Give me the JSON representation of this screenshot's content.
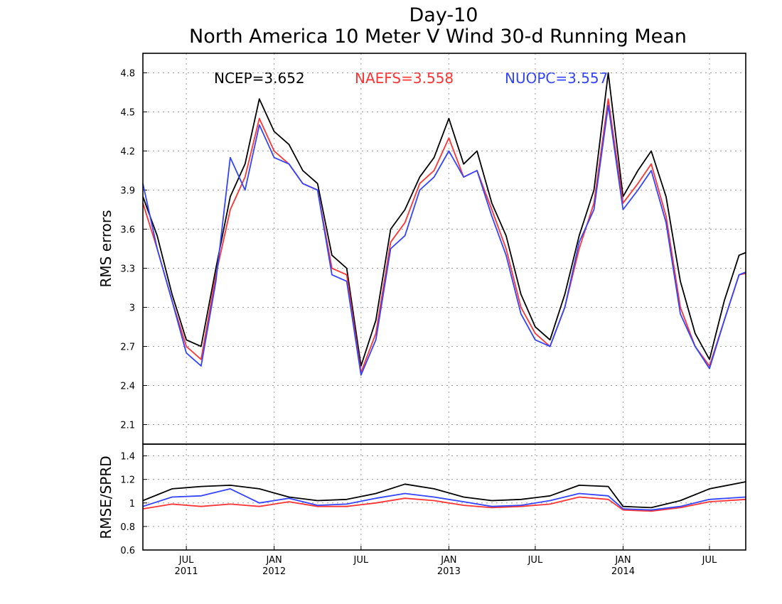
{
  "chart_data": [
    {
      "type": "line",
      "title": "Day-10",
      "subtitle": "North America 10 Meter V Wind 30-d Running Mean",
      "ylabel": "RMS errors",
      "ylim": [
        1.95,
        4.95
      ],
      "yticks": [
        "2.1",
        "2.4",
        "2.7",
        "3",
        "3.3",
        "3.6",
        "3.9",
        "4.2",
        "4.5",
        "4.8"
      ],
      "xlim": [
        "2011-04-01",
        "2014-09-15"
      ],
      "grid": true,
      "series": [
        {
          "name": "NCEP",
          "label": "NCEP=3.652",
          "color": "#000000",
          "x": [
            "2011-04-01",
            "2011-05-01",
            "2011-06-01",
            "2011-07-01",
            "2011-08-01",
            "2011-09-01",
            "2011-10-01",
            "2011-11-01",
            "2011-12-01",
            "2012-01-01",
            "2012-02-01",
            "2012-03-01",
            "2012-04-01",
            "2012-05-01",
            "2012-06-01",
            "2012-07-01",
            "2012-08-01",
            "2012-09-01",
            "2012-10-01",
            "2012-11-01",
            "2012-12-01",
            "2013-01-01",
            "2013-02-01",
            "2013-03-01",
            "2013-04-01",
            "2013-05-01",
            "2013-06-01",
            "2013-07-01",
            "2013-08-01",
            "2013-09-01",
            "2013-10-01",
            "2013-11-01",
            "2013-12-01",
            "2014-01-01",
            "2014-02-01",
            "2014-03-01",
            "2014-04-01",
            "2014-05-01",
            "2014-06-01",
            "2014-07-01",
            "2014-08-01",
            "2014-09-01",
            "2014-09-15"
          ],
          "y": [
            3.85,
            3.55,
            3.1,
            2.75,
            2.7,
            3.3,
            3.85,
            4.1,
            4.6,
            4.35,
            4.25,
            4.05,
            3.95,
            3.4,
            3.3,
            2.55,
            2.9,
            3.6,
            3.75,
            4.0,
            4.15,
            4.45,
            4.1,
            4.2,
            3.8,
            3.55,
            3.1,
            2.85,
            2.75,
            3.1,
            3.55,
            3.9,
            4.8,
            3.85,
            4.05,
            4.2,
            3.85,
            3.2,
            2.8,
            2.6,
            3.05,
            3.4,
            3.42
          ]
        },
        {
          "name": "NAEFS",
          "label": "NAEFS=3.558",
          "color": "#ff3333",
          "x": [
            "2011-04-01",
            "2011-05-01",
            "2011-06-01",
            "2011-07-01",
            "2011-08-01",
            "2011-09-01",
            "2011-10-01",
            "2011-11-01",
            "2011-12-01",
            "2012-01-01",
            "2012-02-01",
            "2012-03-01",
            "2012-04-01",
            "2012-05-01",
            "2012-06-01",
            "2012-07-01",
            "2012-08-01",
            "2012-09-01",
            "2012-10-01",
            "2012-11-01",
            "2012-12-01",
            "2013-01-01",
            "2013-02-01",
            "2013-03-01",
            "2013-04-01",
            "2013-05-01",
            "2013-06-01",
            "2013-07-01",
            "2013-08-01",
            "2013-09-01",
            "2013-10-01",
            "2013-11-01",
            "2013-12-01",
            "2014-01-01",
            "2014-02-01",
            "2014-03-01",
            "2014-04-01",
            "2014-05-01",
            "2014-06-01",
            "2014-07-01",
            "2014-08-01",
            "2014-09-01",
            "2014-09-15"
          ],
          "y": [
            3.8,
            3.45,
            3.05,
            2.7,
            2.6,
            3.25,
            3.75,
            4.0,
            4.45,
            4.2,
            4.1,
            3.95,
            3.9,
            3.3,
            3.25,
            2.5,
            2.8,
            3.5,
            3.65,
            3.95,
            4.05,
            4.3,
            4.0,
            4.05,
            3.75,
            3.45,
            3.0,
            2.8,
            2.7,
            3.0,
            3.45,
            3.8,
            4.6,
            3.8,
            3.95,
            4.1,
            3.7,
            3.0,
            2.7,
            2.55,
            2.9,
            3.25,
            3.26
          ]
        },
        {
          "name": "NUOPC",
          "label": "NUOPC=3.557",
          "color": "#3344ff",
          "x": [
            "2011-04-01",
            "2011-05-01",
            "2011-06-01",
            "2011-07-01",
            "2011-08-01",
            "2011-09-01",
            "2011-10-01",
            "2011-11-01",
            "2011-12-01",
            "2012-01-01",
            "2012-02-01",
            "2012-03-01",
            "2012-04-01",
            "2012-05-01",
            "2012-06-01",
            "2012-07-01",
            "2012-08-01",
            "2012-09-01",
            "2012-10-01",
            "2012-11-01",
            "2012-12-01",
            "2013-01-01",
            "2013-02-01",
            "2013-03-01",
            "2013-04-01",
            "2013-05-01",
            "2013-06-01",
            "2013-07-01",
            "2013-08-01",
            "2013-09-01",
            "2013-10-01",
            "2013-11-01",
            "2013-12-01",
            "2014-01-01",
            "2014-02-01",
            "2014-03-01",
            "2014-04-01",
            "2014-05-01",
            "2014-06-01",
            "2014-07-01",
            "2014-08-01",
            "2014-09-01",
            "2014-09-15"
          ],
          "y": [
            3.95,
            3.45,
            3.05,
            2.65,
            2.55,
            3.2,
            4.15,
            3.9,
            4.4,
            4.15,
            4.1,
            3.95,
            3.9,
            3.25,
            3.2,
            2.48,
            2.75,
            3.45,
            3.55,
            3.9,
            4.0,
            4.2,
            4.0,
            4.05,
            3.7,
            3.4,
            2.95,
            2.75,
            2.7,
            3.0,
            3.5,
            3.75,
            4.55,
            3.75,
            3.9,
            4.05,
            3.65,
            2.95,
            2.7,
            2.53,
            2.9,
            3.25,
            3.27
          ]
        }
      ]
    },
    {
      "type": "line",
      "ylabel": "RMSE/SPRD",
      "ylim": [
        0.6,
        1.5
      ],
      "yticks": [
        "0.6",
        "0.8",
        "1",
        "1.2",
        "1.4"
      ],
      "xlim": [
        "2011-04-01",
        "2014-09-15"
      ],
      "xticks": [
        {
          "date": "2011-07-01",
          "month": "JUL",
          "year": "2011"
        },
        {
          "date": "2012-01-01",
          "month": "JAN",
          "year": "2012"
        },
        {
          "date": "2012-07-01",
          "month": "JUL",
          "year": ""
        },
        {
          "date": "2013-01-01",
          "month": "JAN",
          "year": "2013"
        },
        {
          "date": "2013-07-01",
          "month": "JUL",
          "year": ""
        },
        {
          "date": "2014-01-01",
          "month": "JAN",
          "year": "2014"
        },
        {
          "date": "2014-07-01",
          "month": "JUL",
          "year": ""
        }
      ],
      "grid": true,
      "series": [
        {
          "name": "NCEP",
          "color": "#000000",
          "x": [
            "2011-04-01",
            "2011-06-01",
            "2011-08-01",
            "2011-10-01",
            "2011-12-01",
            "2012-02-01",
            "2012-04-01",
            "2012-06-01",
            "2012-08-01",
            "2012-10-01",
            "2012-12-01",
            "2013-02-01",
            "2013-04-01",
            "2013-06-01",
            "2013-08-01",
            "2013-10-01",
            "2013-12-01",
            "2014-01-01",
            "2014-03-01",
            "2014-05-01",
            "2014-07-01",
            "2014-09-15"
          ],
          "y": [
            1.02,
            1.12,
            1.14,
            1.15,
            1.12,
            1.05,
            1.02,
            1.03,
            1.08,
            1.16,
            1.12,
            1.05,
            1.02,
            1.03,
            1.06,
            1.15,
            1.14,
            0.97,
            0.96,
            1.02,
            1.12,
            1.18
          ]
        },
        {
          "name": "NAEFS",
          "color": "#ff3333",
          "x": [
            "2011-04-01",
            "2011-06-01",
            "2011-08-01",
            "2011-10-01",
            "2011-12-01",
            "2012-02-01",
            "2012-04-01",
            "2012-06-01",
            "2012-08-01",
            "2012-10-01",
            "2012-12-01",
            "2013-02-01",
            "2013-04-01",
            "2013-06-01",
            "2013-08-01",
            "2013-10-01",
            "2013-12-01",
            "2014-01-01",
            "2014-03-01",
            "2014-05-01",
            "2014-07-01",
            "2014-09-15"
          ],
          "y": [
            0.95,
            0.99,
            0.97,
            0.99,
            0.97,
            1.01,
            0.97,
            0.97,
            1.0,
            1.04,
            1.02,
            0.98,
            0.96,
            0.97,
            0.99,
            1.05,
            1.03,
            0.94,
            0.93,
            0.96,
            1.01,
            1.03
          ]
        },
        {
          "name": "NUOPC",
          "color": "#3344ff",
          "x": [
            "2011-04-01",
            "2011-06-01",
            "2011-08-01",
            "2011-10-01",
            "2011-12-01",
            "2012-02-01",
            "2012-04-01",
            "2012-06-01",
            "2012-08-01",
            "2012-10-01",
            "2012-12-01",
            "2013-02-01",
            "2013-04-01",
            "2013-06-01",
            "2013-08-01",
            "2013-10-01",
            "2013-12-01",
            "2014-01-01",
            "2014-03-01",
            "2014-05-01",
            "2014-07-01",
            "2014-09-15"
          ],
          "y": [
            0.97,
            1.05,
            1.06,
            1.12,
            1.0,
            1.04,
            0.98,
            0.99,
            1.04,
            1.08,
            1.05,
            1.01,
            0.97,
            0.98,
            1.02,
            1.08,
            1.06,
            0.95,
            0.94,
            0.97,
            1.03,
            1.05
          ]
        }
      ]
    }
  ]
}
